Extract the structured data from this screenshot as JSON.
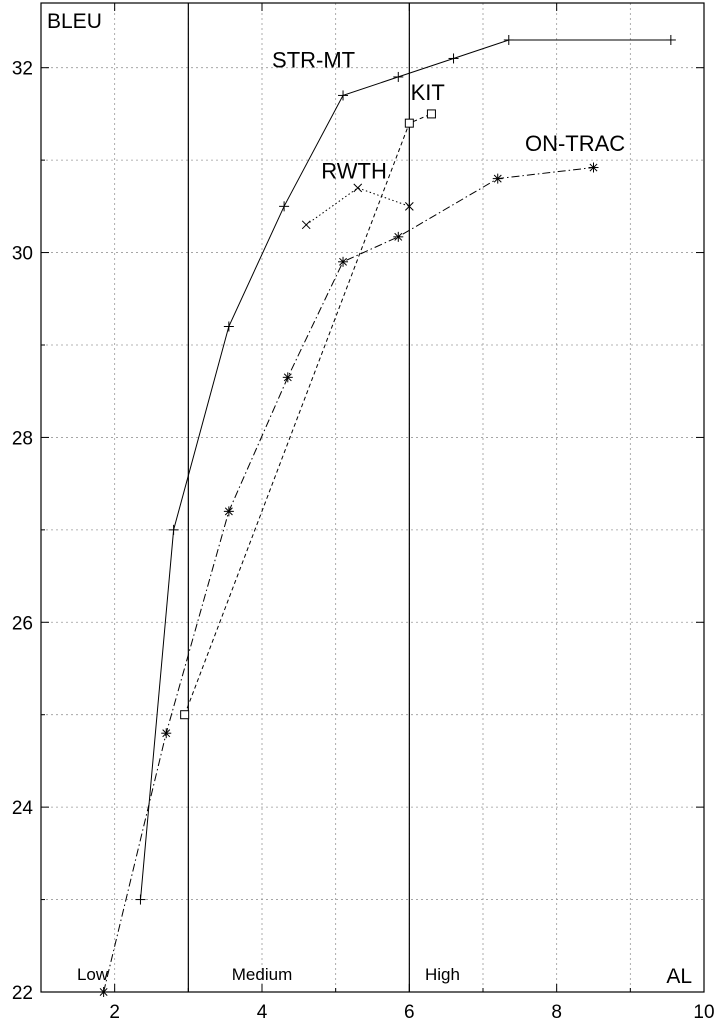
{
  "chart_data": {
    "type": "line",
    "title": "",
    "xlabel": "AL",
    "ylabel": "BLEU",
    "xlim": [
      1,
      10
    ],
    "ylim": [
      22,
      32.7
    ],
    "xticks": [
      2,
      4,
      6,
      8,
      10
    ],
    "yticks": [
      22,
      24,
      26,
      28,
      30,
      32
    ],
    "grid": true,
    "region_boundaries": [
      3,
      6
    ],
    "regions": [
      {
        "label": "Low",
        "x": 1.7
      },
      {
        "label": "Medium",
        "x": 4.0
      },
      {
        "label": "High",
        "x": 6.45
      }
    ],
    "series": [
      {
        "name": "STR-MT",
        "marker": "plus",
        "line_style": "solid",
        "label_pos": [
          4.7,
          32.0
        ],
        "points": [
          [
            2.35,
            23.0
          ],
          [
            2.8,
            27.0
          ],
          [
            3.55,
            29.2
          ],
          [
            4.3,
            30.5
          ],
          [
            5.1,
            31.7
          ],
          [
            5.85,
            31.9
          ],
          [
            6.6,
            32.1
          ],
          [
            7.35,
            32.3
          ],
          [
            9.55,
            32.3
          ]
        ]
      },
      {
        "name": "KIT",
        "marker": "square",
        "line_style": "dashed",
        "label_pos": [
          6.25,
          31.65
        ],
        "points": [
          [
            2.95,
            25.0
          ],
          [
            6.0,
            31.4
          ],
          [
            6.3,
            31.5
          ]
        ]
      },
      {
        "name": "RWTH",
        "marker": "cross",
        "line_style": "dotted",
        "label_pos": [
          5.25,
          30.8
        ],
        "points": [
          [
            4.6,
            30.3
          ],
          [
            5.3,
            30.7
          ],
          [
            6.0,
            30.5
          ]
        ]
      },
      {
        "name": "ON-TRAC",
        "marker": "star",
        "line_style": "dashdot",
        "label_pos": [
          8.25,
          31.1
        ],
        "points": [
          [
            1.85,
            22.0
          ],
          [
            2.7,
            24.8
          ],
          [
            3.55,
            27.2
          ],
          [
            4.35,
            28.65
          ],
          [
            5.1,
            29.9
          ],
          [
            5.85,
            30.17
          ],
          [
            7.2,
            30.8
          ],
          [
            8.5,
            30.92
          ]
        ]
      }
    ]
  }
}
